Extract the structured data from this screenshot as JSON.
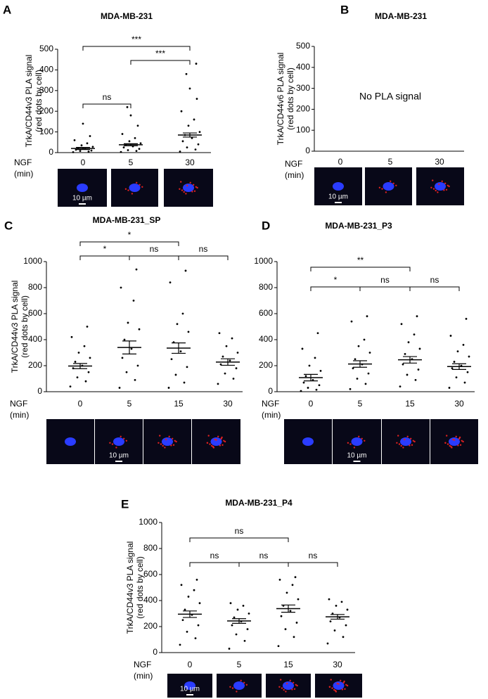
{
  "chart_data": [
    {
      "type": "dotplot",
      "panel": "A",
      "title": "MDA-MB-231",
      "ylabel": [
        "TrkA/CD44v3 PLA signal",
        "(red dots by cell)"
      ],
      "xlabel": [
        "NGF",
        "(min)"
      ],
      "categories": [
        "0",
        "5",
        "30"
      ],
      "ylim": [
        0,
        500
      ],
      "yticks": [
        0,
        100,
        200,
        300,
        400,
        500
      ],
      "color": "#000000",
      "series": [
        {
          "mean": 20,
          "sem": 5,
          "points": [
            2,
            5,
            8,
            10,
            14,
            18,
            22,
            28,
            35,
            45,
            60,
            80,
            140
          ]
        },
        {
          "mean": 38,
          "sem": 5,
          "points": [
            3,
            8,
            12,
            18,
            25,
            30,
            38,
            45,
            55,
            70,
            90,
            130,
            180,
            220
          ]
        },
        {
          "mean": 85,
          "sem": 10,
          "points": [
            5,
            15,
            25,
            40,
            55,
            70,
            85,
            100,
            130,
            160,
            200,
            260,
            310,
            380,
            430
          ]
        }
      ],
      "comparisons": [
        {
          "from": 0,
          "to": 1,
          "label": "ns"
        },
        {
          "from": 1,
          "to": 2,
          "label": "***"
        },
        {
          "from": 0,
          "to": 2,
          "label": "***"
        }
      ],
      "scale_bar": "10 µm"
    },
    {
      "type": "dotplot",
      "panel": "B",
      "title": "MDA-MB-231",
      "ylabel": [
        "TrkA/CD44v6 PLA signal",
        "(red dots by cell)"
      ],
      "xlabel": [
        "NGF",
        "(min)"
      ],
      "categories": [
        "0",
        "5",
        "30"
      ],
      "ylim": [
        0,
        500
      ],
      "yticks": [
        0,
        100,
        200,
        300,
        400,
        500
      ],
      "color": "#000000",
      "annotation": "No PLA signal",
      "series": [],
      "comparisons": [],
      "scale_bar": "10 µm"
    },
    {
      "type": "dotplot",
      "panel": "C",
      "title": "MDA-MB-231_SP",
      "ylabel": [
        "TrkA/CD44v3 PLA signal",
        "(red dots by cell)"
      ],
      "xlabel": [
        "NGF",
        "(min)"
      ],
      "categories": [
        "0",
        "5",
        "15",
        "30"
      ],
      "ylim": [
        0,
        1000
      ],
      "yticks": [
        0,
        200,
        400,
        600,
        800,
        1000
      ],
      "color": "#000000",
      "series": [
        {
          "mean": 197,
          "sem": 20,
          "points": [
            40,
            80,
            110,
            150,
            180,
            200,
            230,
            260,
            300,
            350,
            420,
            500
          ]
        },
        {
          "mean": 340,
          "sem": 50,
          "points": [
            30,
            90,
            150,
            200,
            260,
            330,
            400,
            480,
            530,
            700,
            800,
            940
          ]
        },
        {
          "mean": 335,
          "sem": 40,
          "points": [
            30,
            70,
            130,
            190,
            250,
            310,
            380,
            460,
            520,
            600,
            840,
            930
          ]
        },
        {
          "mean": 228,
          "sem": 25,
          "points": [
            60,
            100,
            140,
            180,
            210,
            240,
            270,
            300,
            350,
            410,
            450
          ]
        }
      ],
      "comparisons": [
        {
          "from": 0,
          "to": 1,
          "label": "*"
        },
        {
          "from": 1,
          "to": 2,
          "label": "ns"
        },
        {
          "from": 2,
          "to": 3,
          "label": "ns"
        },
        {
          "from": 0,
          "to": 2,
          "label": "*"
        }
      ],
      "scale_bar": "10 µm"
    },
    {
      "type": "dotplot",
      "panel": "D",
      "title": "MDA-MB-231_P3",
      "ylabel": [],
      "xlabel": [
        "NGF",
        "(min)"
      ],
      "categories": [
        "0",
        "5",
        "15",
        "30"
      ],
      "ylim": [
        0,
        1000
      ],
      "yticks": [
        0,
        200,
        400,
        600,
        800,
        1000
      ],
      "color": "#000000",
      "series": [
        {
          "mean": 108,
          "sem": 25,
          "points": [
            5,
            15,
            30,
            50,
            70,
            90,
            120,
            160,
            200,
            260,
            330,
            450
          ]
        },
        {
          "mean": 213,
          "sem": 25,
          "points": [
            20,
            60,
            100,
            140,
            180,
            210,
            250,
            300,
            350,
            400,
            540,
            580
          ]
        },
        {
          "mean": 245,
          "sem": 25,
          "points": [
            40,
            90,
            130,
            170,
            210,
            250,
            290,
            330,
            380,
            440,
            520,
            580
          ]
        },
        {
          "mean": 193,
          "sem": 22,
          "points": [
            30,
            70,
            110,
            150,
            180,
            200,
            230,
            270,
            310,
            360,
            430,
            560
          ]
        }
      ],
      "comparisons": [
        {
          "from": 0,
          "to": 1,
          "label": "*"
        },
        {
          "from": 1,
          "to": 2,
          "label": "ns"
        },
        {
          "from": 2,
          "to": 3,
          "label": "ns"
        },
        {
          "from": 0,
          "to": 2,
          "label": "**"
        }
      ],
      "scale_bar": "10 µm"
    },
    {
      "type": "dotplot",
      "panel": "E",
      "title": "MDA-MB-231_P4",
      "ylabel": [
        "TrkA/CD44v3 PLA signal",
        "(red dots by cell)"
      ],
      "xlabel": [
        "NGF",
        "(min)"
      ],
      "categories": [
        "0",
        "5",
        "15",
        "30"
      ],
      "ylim": [
        0,
        1000
      ],
      "yticks": [
        0,
        200,
        400,
        600,
        800,
        1000
      ],
      "color": "#000000",
      "series": [
        {
          "mean": 295,
          "sem": 25,
          "points": [
            60,
            110,
            160,
            210,
            250,
            290,
            330,
            380,
            430,
            480,
            520,
            560
          ]
        },
        {
          "mean": 243,
          "sem": 18,
          "points": [
            30,
            90,
            140,
            180,
            210,
            240,
            270,
            300,
            330,
            360,
            380
          ]
        },
        {
          "mean": 338,
          "sem": 28,
          "points": [
            50,
            120,
            180,
            230,
            280,
            320,
            360,
            410,
            460,
            520,
            560,
            580
          ]
        },
        {
          "mean": 275,
          "sem": 18,
          "points": [
            70,
            120,
            170,
            210,
            240,
            270,
            300,
            330,
            360,
            390,
            410
          ]
        }
      ],
      "comparisons": [
        {
          "from": 0,
          "to": 1,
          "label": "ns"
        },
        {
          "from": 1,
          "to": 2,
          "label": "ns"
        },
        {
          "from": 2,
          "to": 3,
          "label": "ns"
        },
        {
          "from": 0,
          "to": 2,
          "label": "ns"
        }
      ],
      "scale_bar": "10 µm"
    }
  ]
}
